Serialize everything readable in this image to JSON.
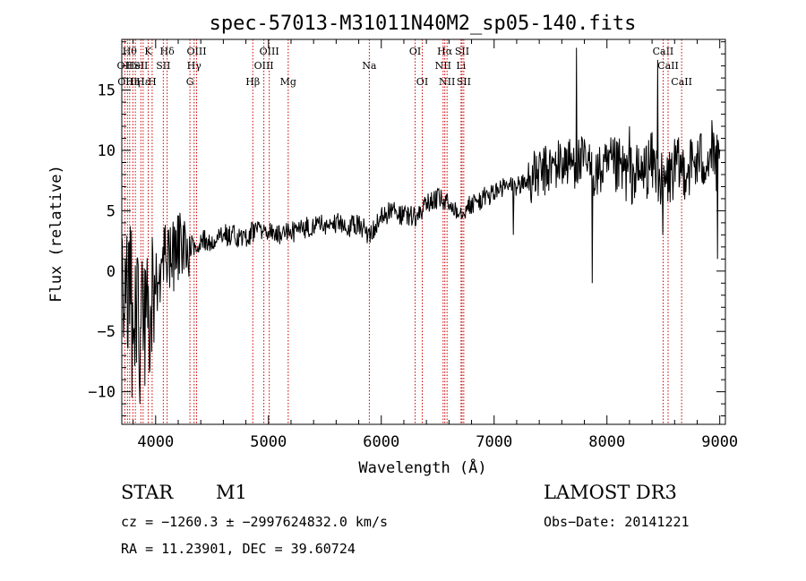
{
  "chart_data": {
    "type": "line",
    "title": "spec-57013-M31011N40M2_sp05-140.fits",
    "xlabel": "Wavelength (Å)",
    "ylabel": "Flux (relative)",
    "xlim": [
      3700,
      9050
    ],
    "ylim": [
      -12.7,
      19.2
    ],
    "xticks": [
      4000,
      5000,
      6000,
      7000,
      8000,
      9000
    ],
    "yticks": [
      -10,
      -5,
      0,
      5,
      10,
      15
    ],
    "line_color": "#000000",
    "marker_color": "#cc0000",
    "anchors": [
      [
        3700,
        -2.0
      ],
      [
        3750,
        -1.0
      ],
      [
        3800,
        -2.5
      ],
      [
        3850,
        -4.0
      ],
      [
        3900,
        -3.5
      ],
      [
        3950,
        -3.0
      ],
      [
        4000,
        -1.0
      ],
      [
        4050,
        0.5
      ],
      [
        4100,
        1.0
      ],
      [
        4150,
        1.0
      ],
      [
        4200,
        2.0
      ],
      [
        4300,
        2.0
      ],
      [
        4400,
        2.5
      ],
      [
        4500,
        2.5
      ],
      [
        4600,
        3.0
      ],
      [
        4700,
        3.0
      ],
      [
        4800,
        2.8
      ],
      [
        4900,
        3.5
      ],
      [
        5000,
        3.2
      ],
      [
        5100,
        3.0
      ],
      [
        5200,
        3.2
      ],
      [
        5300,
        3.5
      ],
      [
        5400,
        3.8
      ],
      [
        5500,
        3.8
      ],
      [
        5600,
        4.0
      ],
      [
        5700,
        3.5
      ],
      [
        5800,
        4.0
      ],
      [
        5890,
        3.0
      ],
      [
        6000,
        4.5
      ],
      [
        6100,
        5.0
      ],
      [
        6200,
        4.5
      ],
      [
        6300,
        4.5
      ],
      [
        6400,
        5.5
      ],
      [
        6500,
        6.0
      ],
      [
        6600,
        5.5
      ],
      [
        6700,
        5.0
      ],
      [
        6800,
        5.5
      ],
      [
        6900,
        6.0
      ],
      [
        7000,
        6.5
      ],
      [
        7100,
        7.0
      ],
      [
        7200,
        7.0
      ],
      [
        7300,
        7.5
      ],
      [
        7400,
        8.0
      ],
      [
        7500,
        8.5
      ],
      [
        7600,
        9.0
      ],
      [
        7700,
        9.0
      ],
      [
        7800,
        9.0
      ],
      [
        7900,
        8.0
      ],
      [
        8000,
        8.5
      ],
      [
        8100,
        8.5
      ],
      [
        8200,
        8.0
      ],
      [
        8300,
        8.0
      ],
      [
        8400,
        9.0
      ],
      [
        8500,
        7.0
      ],
      [
        8600,
        8.5
      ],
      [
        8700,
        8.5
      ],
      [
        8800,
        9.0
      ],
      [
        8900,
        9.5
      ],
      [
        9000,
        8.5
      ]
    ],
    "spikes": [
      [
        3860,
        -11.0
      ],
      [
        3905,
        -9.5
      ],
      [
        3790,
        -10.5
      ],
      [
        3950,
        -8.0
      ],
      [
        7730,
        18.5
      ],
      [
        7870,
        -1.0
      ],
      [
        8450,
        17.5
      ],
      [
        8495,
        3.0
      ],
      [
        7170,
        3.0
      ],
      [
        8200,
        12.0
      ],
      [
        8980,
        1.0
      ],
      [
        8930,
        12.5
      ]
    ],
    "markers": [
      {
        "wl": 3727,
        "label": "OII",
        "row": 2
      },
      {
        "wl": 3750,
        "label": "OIII",
        "row": 3
      },
      {
        "wl": 3770,
        "label": "Hθ",
        "row": 1
      },
      {
        "wl": 3798,
        "label": "Hη",
        "row": 3
      },
      {
        "wl": 3820,
        "label": "HeI",
        "row": 2
      },
      {
        "wl": 3869,
        "label": "SII",
        "row": 2
      },
      {
        "wl": 3889,
        "label": "Hε",
        "row": 3
      },
      {
        "wl": 3934,
        "label": "K",
        "row": 1
      },
      {
        "wl": 3969,
        "label": "H",
        "row": 3
      },
      {
        "wl": 4102,
        "label": "Hδ",
        "row": 1
      },
      {
        "wl": 4068,
        "label": "SII",
        "row": 2
      },
      {
        "wl": 4304,
        "label": "G",
        "row": 3
      },
      {
        "wl": 4341,
        "label": "Hγ",
        "row": 2
      },
      {
        "wl": 4363,
        "label": "OIII",
        "row": 1
      },
      {
        "wl": 4861,
        "label": "Hβ",
        "row": 3
      },
      {
        "wl": 4959,
        "label": "OIII",
        "row": 2
      },
      {
        "wl": 5007,
        "label": "OIII",
        "row": 1
      },
      {
        "wl": 5175,
        "label": "Mg",
        "row": 3
      },
      {
        "wl": 5894,
        "label": "Na",
        "row": 2
      },
      {
        "wl": 6300,
        "label": "OI",
        "row": 1
      },
      {
        "wl": 6363,
        "label": "OI",
        "row": 3
      },
      {
        "wl": 6548,
        "label": "NII",
        "row": 2
      },
      {
        "wl": 6563,
        "label": "Hα",
        "row": 1
      },
      {
        "wl": 6583,
        "label": "NII",
        "row": 3
      },
      {
        "wl": 6707,
        "label": "Li",
        "row": 2
      },
      {
        "wl": 6716,
        "label": "SII",
        "row": 1
      },
      {
        "wl": 6731,
        "label": "SII",
        "row": 3
      },
      {
        "wl": 8498,
        "label": "CaII",
        "row": 1
      },
      {
        "wl": 8542,
        "label": "CaII",
        "row": 2
      },
      {
        "wl": 8662,
        "label": "CaII",
        "row": 3
      }
    ]
  },
  "info": {
    "object_class": "STAR",
    "subclass": "M1",
    "survey": "LAMOST DR3",
    "cz": "cz = −1260.3 ± −2997624832.0 km/s",
    "obs_date": "Obs−Date: 20141221",
    "radec": "RA =  11.23901, DEC =  39.60724"
  }
}
